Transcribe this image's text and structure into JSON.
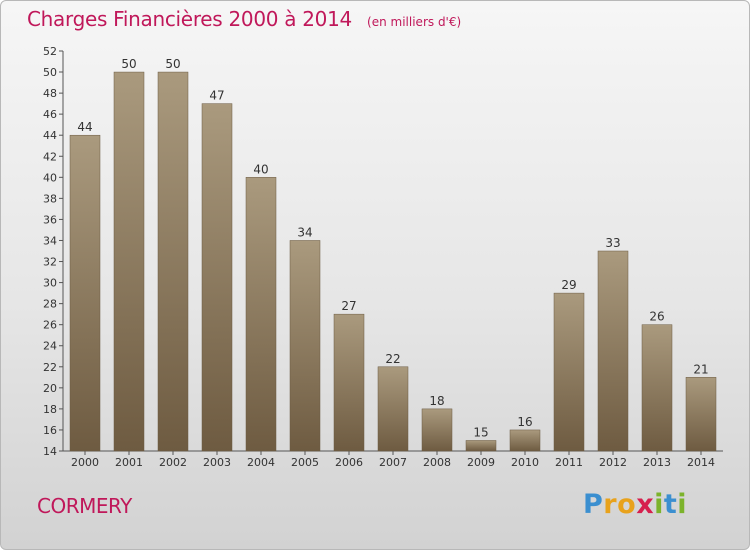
{
  "title": "Charges Financières 2000 à 2014",
  "subtitle": "(en milliers d'€)",
  "commune": "CORMERY",
  "logo": {
    "letters": [
      "P",
      "r",
      "o",
      "x",
      "i",
      "t",
      "i"
    ],
    "colors": [
      "#3b8fd0",
      "#e8a21c",
      "#e8a21c",
      "#d6204e",
      "#7cb32b",
      "#3b8fd0",
      "#7cb32b"
    ]
  },
  "colors": {
    "accent": "#c0185a",
    "bar_top": "#aa9a7e",
    "bar_bottom": "#6e5b41"
  },
  "chart_data": {
    "type": "bar",
    "title": "Charges Financières 2000 à 2014",
    "subtitle": "(en milliers d'€)",
    "categories": [
      "2000",
      "2001",
      "2002",
      "2003",
      "2004",
      "2005",
      "2006",
      "2007",
      "2008",
      "2009",
      "2010",
      "2011",
      "2012",
      "2013",
      "2014"
    ],
    "values": [
      44,
      50,
      50,
      47,
      40,
      34,
      27,
      22,
      18,
      15,
      16,
      29,
      33,
      26,
      21
    ],
    "ylim": [
      14,
      52
    ],
    "yticks": [
      14,
      16,
      18,
      20,
      22,
      24,
      26,
      28,
      30,
      32,
      34,
      36,
      38,
      40,
      42,
      44,
      46,
      48,
      50,
      52
    ],
    "grid": false,
    "data_labels": true
  }
}
